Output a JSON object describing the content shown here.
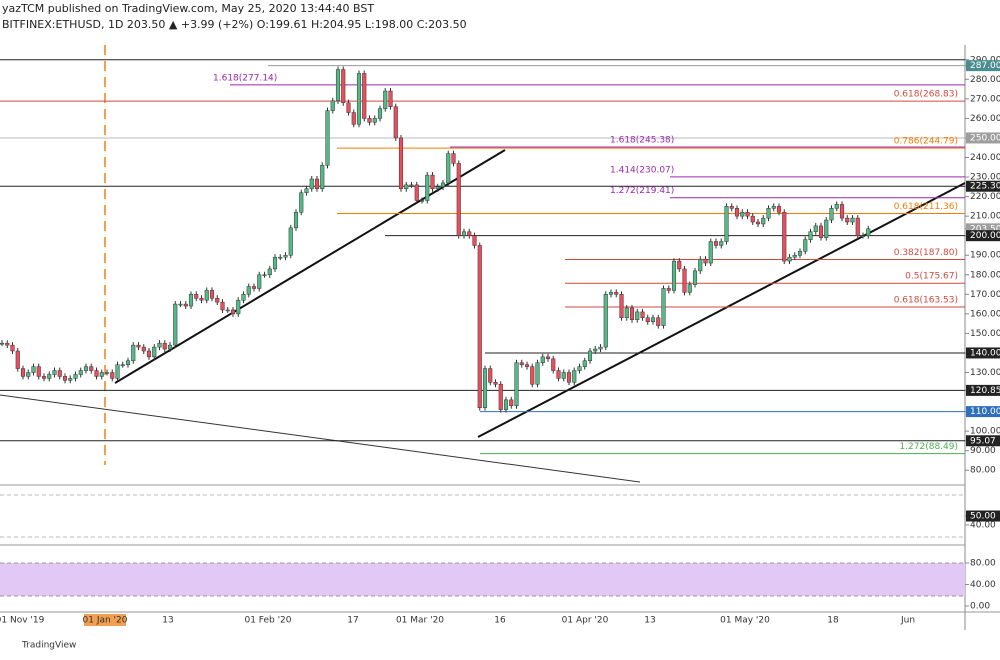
{
  "header": {
    "author_line": "yazTCM published on TradingView.com, May 25, 2020 13:44:40 BST",
    "symbol_line": "BITFINEX:ETHUSD, 1D 203.50 ▲ +3.99 (+2%) O:199.61 H:204.95 L:198.00 C:203.50"
  },
  "price_chart": {
    "type": "candlestick",
    "closes": [
      145,
      144,
      141,
      132,
      128,
      130,
      133,
      128,
      127,
      129,
      131,
      128,
      126,
      127,
      129,
      131,
      133,
      131,
      128,
      130,
      130,
      127,
      134,
      134,
      136,
      144,
      143,
      141,
      138,
      143,
      145,
      142,
      144,
      165,
      165,
      164,
      170,
      168,
      167,
      172,
      168,
      166,
      162,
      162,
      160,
      167,
      170,
      174,
      173,
      180,
      180,
      183,
      189,
      189,
      190,
      204,
      212,
      222,
      224,
      229,
      224,
      236,
      264,
      269,
      285,
      268,
      263,
      257,
      283,
      260,
      258,
      260,
      265,
      274,
      266,
      250,
      224,
      226,
      226,
      218,
      218,
      231,
      224,
      225,
      227,
      242,
      237,
      200,
      202,
      200,
      195,
      112,
      132,
      125,
      124,
      111,
      116,
      113,
      135,
      134,
      133,
      124,
      135,
      138,
      137,
      131,
      127,
      130,
      125,
      131,
      133,
      136,
      141,
      142,
      143,
      170,
      171,
      170,
      158,
      163,
      157,
      161,
      158,
      156,
      158,
      154,
      173,
      172,
      187,
      183,
      171,
      175,
      182,
      188,
      186,
      197,
      195,
      197,
      215,
      214,
      210,
      212,
      210,
      207,
      206,
      209,
      214,
      215,
      212,
      187,
      189,
      190,
      192,
      198,
      202,
      205,
      199,
      208,
      214,
      216,
      209,
      207,
      209,
      200,
      200,
      203.5
    ],
    "up_color": "#53b987",
    "down_color": "#eb4d5c",
    "ylim": [
      75,
      295
    ],
    "yticks": [
      {
        "value": 290,
        "label": "290.00"
      },
      {
        "value": 287,
        "label": "287.00",
        "color": "#4a8c8f"
      },
      {
        "value": 280,
        "label": "280.00"
      },
      {
        "value": 270,
        "label": "270.00"
      },
      {
        "value": 260,
        "label": "260.00"
      },
      {
        "value": 250,
        "label": "250.00",
        "color": "#9e9e9e"
      },
      {
        "value": 240,
        "label": "240.00"
      },
      {
        "value": 230,
        "label": "230.00"
      },
      {
        "value": 225.3,
        "label": "225.30",
        "color": "#222222"
      },
      {
        "value": 220,
        "label": "220.00"
      },
      {
        "value": 210,
        "label": "210.00"
      },
      {
        "value": 203.5,
        "label": "203.50",
        "color": "#9e9e9e"
      },
      {
        "value": 200,
        "label": "200.00",
        "color": "#222222"
      },
      {
        "value": 190,
        "label": "190.00"
      },
      {
        "value": 180,
        "label": "180.00"
      },
      {
        "value": 170,
        "label": "170.00"
      },
      {
        "value": 160,
        "label": "160.00"
      },
      {
        "value": 150,
        "label": "150.00"
      },
      {
        "value": 140,
        "label": "140.00",
        "color": "#222222"
      },
      {
        "value": 130,
        "label": "130.00"
      },
      {
        "value": 120.85,
        "label": "120.85",
        "color": "#222222"
      },
      {
        "value": 110,
        "label": "110.00",
        "color": "#2f6fbd"
      },
      {
        "value": 100,
        "label": "100.00"
      },
      {
        "value": 95.07,
        "label": "95.07",
        "color": "#222222"
      },
      {
        "value": 90,
        "label": "90.00"
      },
      {
        "value": 80,
        "label": "80.00"
      }
    ],
    "levels": [
      {
        "value": 290,
        "color": "#222222"
      },
      {
        "value": 287,
        "color": "#999999"
      },
      {
        "value": 277.14,
        "label": "1.618(277.14)",
        "color": "#9c27b0"
      },
      {
        "value": 268.83,
        "label": "0.618(268.83)",
        "color": "#d04a3c"
      },
      {
        "value": 250,
        "color": "#bbbbbb"
      },
      {
        "value": 245.38,
        "label": "1.618(245.38)",
        "color": "#9c27b0"
      },
      {
        "value": 244.79,
        "label": "0.786(244.79)",
        "color": "#f57c00"
      },
      {
        "value": 230.07,
        "label": "1.414(230.07)",
        "color": "#9c27b0"
      },
      {
        "value": 225.3,
        "color": "#222222"
      },
      {
        "value": 219.41,
        "label": "1.272(219.41)",
        "color": "#9c27b0"
      },
      {
        "value": 211.36,
        "label": "0.618(211.36)",
        "color": "#f57c00"
      },
      {
        "value": 200,
        "color": "#222222"
      },
      {
        "value": 187.8,
        "label": "0.382(187.80)",
        "color": "#d04a3c"
      },
      {
        "value": 175.67,
        "label": "0.5(175.67)",
        "color": "#d04a3c"
      },
      {
        "value": 163.53,
        "label": "0.618(163.53)",
        "color": "#d04a3c"
      },
      {
        "value": 140,
        "color": "#222222"
      },
      {
        "value": 120.85,
        "color": "#222222"
      },
      {
        "value": 110,
        "color": "#2f6fbd"
      },
      {
        "value": 95.07,
        "color": "#222222"
      },
      {
        "value": 88.49,
        "label": "1.272(88.49)",
        "color": "#4caf50"
      }
    ]
  },
  "rsi_axis": [
    {
      "value": 50,
      "label": "50.00",
      "color": "#222222"
    },
    {
      "value": 40,
      "label": "40.00"
    }
  ],
  "stoch_axis": [
    {
      "value": 80,
      "label": "80.00"
    },
    {
      "value": 40,
      "label": "40.00"
    },
    {
      "value": 0,
      "label": "0.00"
    }
  ],
  "date_axis": [
    "01 Nov '19",
    "01 Jan '20",
    "13",
    "01 Feb '20",
    "17",
    "01 Mar '20",
    "16",
    "01 Apr '20",
    "13",
    "01 May '20",
    "18",
    "Jun"
  ],
  "footer": {
    "brand": "TradingView"
  }
}
